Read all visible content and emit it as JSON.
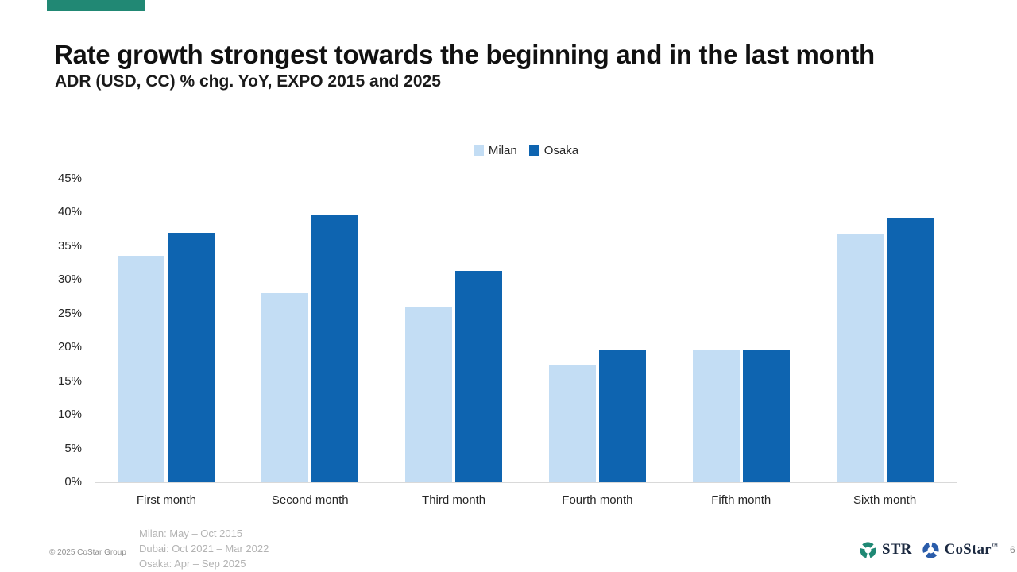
{
  "slide": {
    "accent_color": "#218874",
    "title": "Rate growth strongest towards the beginning and in the last month",
    "subtitle": "ADR (USD, CC) % chg. YoY, EXPO 2015 and 2025"
  },
  "chart_data": {
    "type": "bar",
    "grouped": true,
    "title": "",
    "xlabel": "",
    "ylabel": "",
    "categories": [
      "First month",
      "Second month",
      "Third month",
      "Fourth month",
      "Fifth month",
      "Sixth month"
    ],
    "series": [
      {
        "name": "Milan",
        "color": "#c3ddf4",
        "values": [
          33.6,
          28.0,
          26.0,
          17.3,
          19.7,
          36.8
        ]
      },
      {
        "name": "Osaka",
        "color": "#0e64b0",
        "values": [
          37.0,
          39.7,
          31.3,
          19.6,
          19.7,
          39.1
        ]
      }
    ],
    "ylim": [
      0,
      45
    ],
    "y_tick_values": [
      0,
      5,
      10,
      15,
      20,
      25,
      30,
      35,
      40,
      45
    ],
    "y_tick_labels": [
      "0%",
      "5%",
      "10%",
      "15%",
      "20%",
      "25%",
      "30%",
      "35%",
      "40%",
      "45%"
    ],
    "grid": false,
    "legend_position": "top-center"
  },
  "footer": {
    "copyright": "© 2025 CoStar Group",
    "notes": [
      "Milan: May – Oct 2015",
      "Dubai: Oct 2021 – Mar 2022",
      "Osaka: Apr – Sep 2025"
    ],
    "logos": {
      "str_label": "STR",
      "costar_label": "CoStar",
      "costar_trademark": "™",
      "str_icon_color": "#1f8874",
      "costar_icon_color": "#2a5caa"
    },
    "page_number": "6"
  }
}
